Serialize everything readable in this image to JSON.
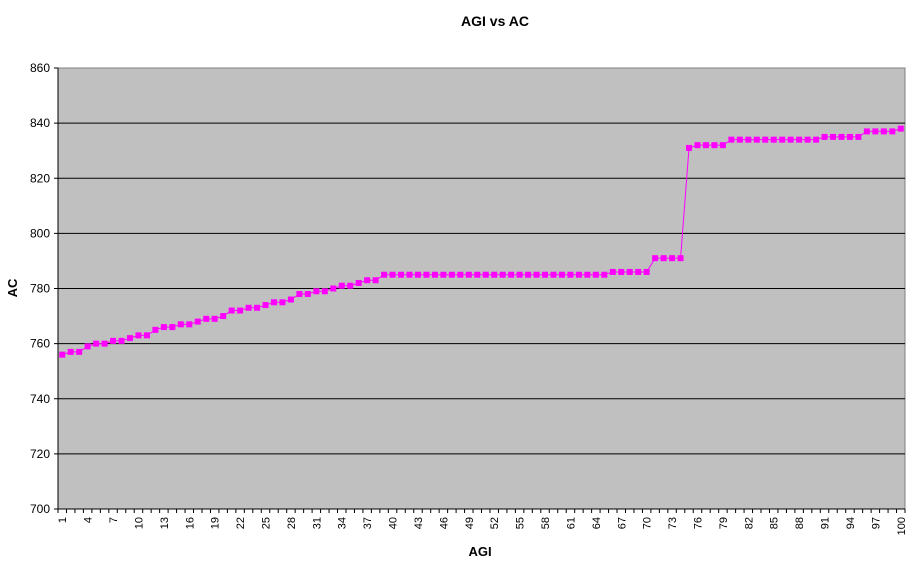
{
  "chart_data": {
    "type": "line",
    "title": "AGI vs AC",
    "xlabel": "AGI",
    "ylabel": "AC",
    "ylim": [
      700,
      860
    ],
    "y_ticks": [
      700,
      720,
      740,
      760,
      780,
      800,
      820,
      840,
      860
    ],
    "x_range": [
      1,
      100
    ],
    "x_tick_labels": [
      "1",
      "4",
      "7",
      "10",
      "13",
      "16",
      "19",
      "22",
      "25",
      "28",
      "31",
      "34",
      "37",
      "40",
      "43",
      "46",
      "49",
      "52",
      "55",
      "58",
      "61",
      "64",
      "67",
      "70",
      "73",
      "76",
      "79",
      "82",
      "85",
      "88",
      "91",
      "94",
      "97",
      "100"
    ],
    "grid": true,
    "legend": "none",
    "colors": {
      "plot_background": "#c0c0c0",
      "series": "#ff00ff",
      "gridline": "#000000"
    },
    "series": [
      {
        "x": [
          1,
          2,
          3,
          4,
          5,
          6,
          7,
          8,
          9,
          10,
          11,
          12,
          13,
          14,
          15,
          16,
          17,
          18,
          19,
          20,
          21,
          22,
          23,
          24,
          25,
          26,
          27,
          28,
          29,
          30,
          31,
          32,
          33,
          34,
          35,
          36,
          37,
          38,
          39,
          40,
          41,
          42,
          43,
          44,
          45,
          46,
          47,
          48,
          49,
          50,
          51,
          52,
          53,
          54,
          55,
          56,
          57,
          58,
          59,
          60,
          61,
          62,
          63,
          64,
          65,
          66,
          67,
          68,
          69,
          70,
          71,
          72,
          73,
          74,
          75,
          76,
          77,
          78,
          79,
          80,
          81,
          82,
          83,
          84,
          85,
          86,
          87,
          88,
          89,
          90,
          91,
          92,
          93,
          94,
          95,
          96,
          97,
          98,
          99,
          100
        ],
        "values": [
          756,
          757,
          757,
          759,
          760,
          760,
          761,
          761,
          762,
          763,
          763,
          765,
          766,
          766,
          767,
          767,
          768,
          769,
          769,
          770,
          772,
          772,
          773,
          773,
          774,
          775,
          775,
          776,
          778,
          778,
          779,
          779,
          780,
          781,
          781,
          782,
          783,
          783,
          785,
          785,
          785,
          785,
          785,
          785,
          785,
          785,
          785,
          785,
          785,
          785,
          785,
          785,
          785,
          785,
          785,
          785,
          785,
          785,
          785,
          785,
          785,
          785,
          785,
          785,
          785,
          786,
          786,
          786,
          786,
          786,
          791,
          791,
          791,
          791,
          831,
          832,
          832,
          832,
          832,
          834,
          834,
          834,
          834,
          834,
          834,
          834,
          834,
          834,
          834,
          834,
          835,
          835,
          835,
          835,
          835,
          837,
          837,
          837,
          837,
          838
        ]
      }
    ]
  }
}
